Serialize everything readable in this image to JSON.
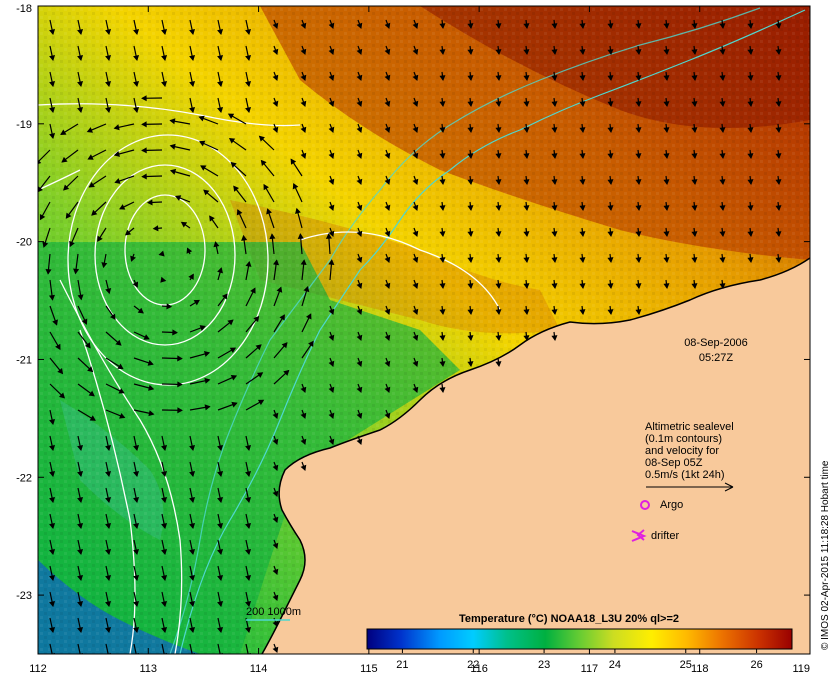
{
  "map": {
    "date": "08-Sep-2006",
    "time": "05:27Z",
    "lon_labels": [
      "112",
      "113",
      "114",
      "115",
      "116",
      "117",
      "118",
      "119"
    ],
    "lat_labels": [
      "-18",
      "-19",
      "-20",
      "-21",
      "-22",
      "-23"
    ],
    "lon_range": [
      112,
      119
    ],
    "lat_range": [
      -18,
      -23.5
    ]
  },
  "legend": {
    "line1": "Altimetric sealevel",
    "line2": "(0.1m contours)",
    "line3": "and velocity for",
    "line4": "08-Sep 05Z",
    "line5": "0.5m/s (1kt 24h)",
    "argo": "Argo",
    "drifter": "drifter",
    "bathymetry": "200  1000m"
  },
  "colorbar": {
    "title": "Temperature (°C) NOAA18_L3U 20% ql>=2",
    "labels": [
      "21",
      "22",
      "23",
      "24",
      "25",
      "26"
    ],
    "range": [
      20.5,
      26.5
    ],
    "colors": [
      "#00007f",
      "#0033cc",
      "#0099ff",
      "#00ccff",
      "#00c08a",
      "#00b040",
      "#66cc33",
      "#ccdd22",
      "#ffee00",
      "#ffbb00",
      "#ee7700",
      "#cc3300",
      "#990000"
    ]
  },
  "credit": "© IMOS 02-Apr-2015 11:18:28 Hobart time",
  "colors": {
    "land": "#f8c99b",
    "ocean_cool": "#00b545",
    "ocean_warm": "#e07a00",
    "contour": "#ffffff",
    "bathy": "#4fd8d0",
    "argo": "#e020e0"
  }
}
